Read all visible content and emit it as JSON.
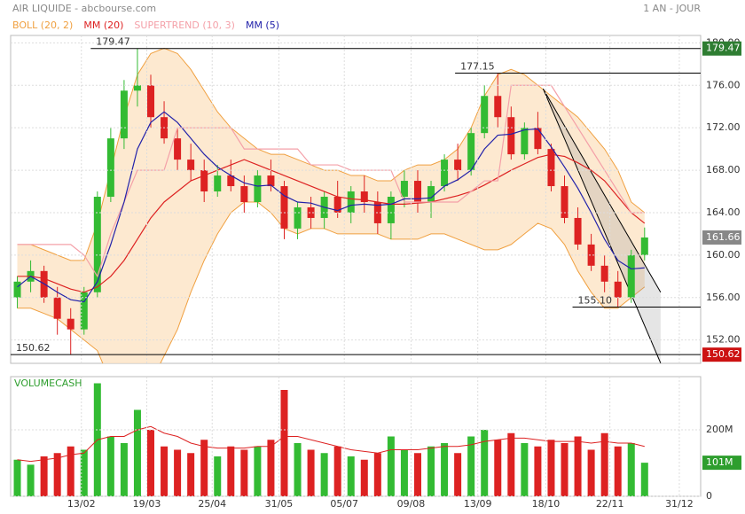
{
  "chart_data": [
    {
      "type": "candlestick",
      "title": "AIR LIQUIDE - abcbourse.com",
      "subtitle": "1 AN - JOUR",
      "up_color": "#33bb33",
      "down_color": "#dd2222",
      "open": [
        156,
        157.5,
        158.5,
        156,
        154,
        153,
        156.5,
        165.5,
        171,
        175.5,
        176,
        173,
        171,
        169,
        168,
        166,
        167.5,
        166.5,
        165,
        167.5,
        166.5,
        162.5,
        164.5,
        163.5,
        165.5,
        164,
        166,
        165,
        163,
        165.5,
        167,
        165,
        166.5,
        169,
        168,
        171.5,
        175,
        173,
        169.5,
        172,
        170,
        166.5,
        163.5,
        161,
        159,
        157.5,
        156,
        160
      ],
      "high": [
        158,
        159.5,
        159,
        157,
        155,
        157,
        166,
        172,
        176.5,
        179.47,
        177,
        174.5,
        172,
        170.5,
        169,
        168.5,
        169,
        167.5,
        168,
        169,
        167,
        165,
        165.5,
        166,
        167,
        166.5,
        167.5,
        166,
        166,
        168,
        168,
        167,
        169.5,
        170.5,
        172,
        176,
        177.15,
        174,
        172.5,
        173.5,
        170.5,
        167.5,
        164.5,
        162,
        160,
        158.5,
        160.5,
        162.6
      ],
      "low": [
        155,
        156.5,
        155.5,
        152.5,
        150.62,
        152.5,
        156,
        165,
        170,
        174,
        172,
        170.5,
        168,
        167,
        165,
        165.5,
        166,
        164,
        164.5,
        166,
        161.5,
        161.5,
        162.5,
        162.5,
        163.5,
        163,
        164,
        162,
        161.5,
        164.5,
        164,
        163.5,
        166,
        167,
        167.5,
        171,
        172,
        169,
        169,
        169.5,
        166,
        163,
        160.5,
        158.5,
        156.5,
        155.1,
        155.5,
        159.5
      ],
      "close": [
        157.5,
        158.5,
        156,
        154,
        153,
        156.5,
        165.5,
        171,
        175.5,
        176,
        173,
        171,
        169,
        168,
        166,
        167.5,
        166.5,
        165,
        167.5,
        166.5,
        162.5,
        164.5,
        163.5,
        165.5,
        164,
        166,
        165,
        163,
        165.5,
        167,
        165,
        166.5,
        169,
        168,
        171.5,
        175,
        173,
        169.5,
        172,
        170,
        166.5,
        163.5,
        161,
        159,
        157.5,
        156,
        160,
        161.66
      ],
      "bands": {
        "name": "BOLL (20, 2)",
        "color": "#f0a040",
        "fill": "#fde3c4",
        "upper": [
          161,
          161,
          160.5,
          160,
          159.5,
          159.5,
          163,
          168,
          173,
          177,
          179,
          179.5,
          179,
          177.5,
          175.5,
          173.5,
          172,
          171,
          170,
          169.5,
          169.5,
          169,
          168.5,
          168,
          168,
          167.5,
          167.5,
          167,
          167,
          168,
          168.5,
          168.5,
          169,
          170,
          172,
          175,
          177,
          177.5,
          177,
          176,
          175,
          174,
          173,
          171.5,
          170,
          168,
          165,
          164
        ],
        "lower": [
          155,
          155,
          154.5,
          154,
          153,
          152,
          151,
          148,
          146,
          146,
          148,
          150.5,
          153,
          156.5,
          159.5,
          162,
          164,
          165,
          165,
          164,
          162.5,
          162,
          162.5,
          162.5,
          162,
          162,
          162,
          162,
          161.5,
          161.5,
          161.5,
          162,
          162,
          161.5,
          161,
          160.5,
          160.5,
          161,
          162,
          163,
          162.5,
          161,
          158.5,
          156.5,
          155,
          155,
          156,
          157
        ]
      },
      "series": [
        {
          "name": "MM (20)",
          "color": "#dd2222",
          "values": [
            158,
            158,
            157.8,
            157.3,
            156.8,
            156.5,
            157,
            158,
            159.5,
            161.5,
            163.5,
            165,
            166,
            167,
            167.5,
            168,
            168.5,
            169,
            168.5,
            168,
            167.5,
            167,
            166.5,
            166,
            165.5,
            165.3,
            165.2,
            165,
            164.8,
            164.8,
            164.9,
            165,
            165.3,
            165.6,
            166,
            166.6,
            167.3,
            168,
            168.6,
            169.2,
            169.5,
            169.3,
            168.7,
            168,
            167,
            165.5,
            164,
            163
          ]
        },
        {
          "name": "SUPERTREND (10, 3)",
          "color": "#f4a0a8",
          "values": [
            161,
            161,
            161,
            161,
            161,
            160,
            158,
            162,
            165,
            168,
            168,
            168,
            172,
            172,
            172,
            172,
            172,
            170,
            170,
            170,
            170,
            170,
            168.5,
            168.5,
            168.5,
            168,
            168,
            168,
            168,
            165,
            165,
            165,
            165,
            165,
            166,
            167,
            167,
            176,
            176,
            176,
            176,
            174,
            172,
            170,
            168,
            166,
            164,
            164
          ]
        },
        {
          "name": "MM (5)",
          "color": "#2222aa",
          "values": [
            157,
            158,
            157.3,
            156.5,
            155.8,
            155.6,
            157.5,
            161,
            165,
            170,
            172.5,
            173.5,
            172.5,
            171,
            169.5,
            168.3,
            167.5,
            166.8,
            166.5,
            166.6,
            165.6,
            165,
            164.9,
            164.5,
            164.2,
            164.7,
            164.8,
            164.7,
            164.8,
            165.3,
            165.3,
            165.4,
            166.5,
            167.1,
            168,
            170,
            171.3,
            171.4,
            171.8,
            171.9,
            170.2,
            168.3,
            166.3,
            164,
            161.5,
            159.5,
            158.7,
            158.8
          ]
        }
      ],
      "levels": [
        {
          "value": 179.47,
          "x": 5.5,
          "color": "#2e7d32"
        },
        {
          "value": 177.15,
          "x": 32.8
        },
        {
          "value": 155.1,
          "label": "155.10",
          "x": 41.6
        },
        {
          "value": 150.62,
          "x": -0.5,
          "color": "#cc1111"
        }
      ],
      "last_color": "#888888",
      "trendlines": [
        {
          "x": [
            39.4,
            48.2
          ],
          "y": [
            175.67,
            156.5
          ]
        },
        {
          "x": [
            39.4,
            48.2
          ],
          "y": [
            175.67,
            149.83
          ]
        }
      ],
      "xlim": [
        -0.5,
        51.2
      ],
      "ylim": [
        149.8,
        180.7
      ],
      "yticks": [
        {
          "value": 152,
          "label": "152.00"
        },
        {
          "value": 156,
          "label": "156.00"
        },
        {
          "value": 160,
          "label": "160.00"
        },
        {
          "value": 164,
          "label": "164.00"
        },
        {
          "value": 168,
          "label": "168.00"
        },
        {
          "value": 172,
          "label": "172.00"
        },
        {
          "value": 176,
          "label": "176.00"
        },
        {
          "value": 180,
          "label": "180.00"
        }
      ],
      "grid": true
    },
    {
      "type": "bar",
      "title": "VOLUMECASH",
      "values": [
        110,
        95,
        120,
        130,
        150,
        140,
        340,
        180,
        160,
        260,
        200,
        150,
        140,
        130,
        170,
        120,
        150,
        140,
        150,
        170,
        320,
        160,
        140,
        130,
        150,
        120,
        110,
        130,
        180,
        140,
        130,
        150,
        160,
        130,
        180,
        200,
        170,
        190,
        160,
        150,
        170,
        160,
        180,
        140,
        190,
        150,
        160,
        101
      ],
      "value_labels": [
        null,
        null,
        null,
        null,
        null,
        null,
        null,
        null,
        null,
        null,
        null,
        null,
        null,
        null,
        null,
        null,
        null,
        null,
        null,
        null,
        null,
        null,
        null,
        null,
        null,
        null,
        null,
        null,
        null,
        null,
        null,
        null,
        null,
        null,
        null,
        null,
        null,
        null,
        null,
        null,
        null,
        null,
        null,
        null,
        null,
        null,
        null,
        "101M"
      ],
      "label_color": "#2e9e2e",
      "average": {
        "color": "#dd2222",
        "values": [
          110,
          105,
          110,
          115,
          125,
          130,
          170,
          180,
          180,
          200,
          210,
          190,
          180,
          160,
          150,
          145,
          145,
          145,
          150,
          150,
          180,
          180,
          170,
          160,
          150,
          140,
          135,
          130,
          140,
          140,
          140,
          145,
          150,
          150,
          155,
          165,
          170,
          175,
          175,
          170,
          165,
          165,
          165,
          160,
          165,
          160,
          160,
          150
        ]
      },
      "xlim": [
        -0.5,
        51.2
      ],
      "ylim": [
        0,
        360
      ],
      "yticks": [
        0,
        {
          "value": 200,
          "label": "200M"
        }
      ],
      "xticks": [
        {
          "value": 4.8,
          "label": "13/02"
        },
        {
          "value": 9.7,
          "label": "19/03"
        },
        {
          "value": 14.6,
          "label": "25/04"
        },
        {
          "value": 19.6,
          "label": "31/05"
        },
        {
          "value": 24.5,
          "label": "05/07"
        },
        {
          "value": 29.5,
          "label": "09/08"
        },
        {
          "value": 34.5,
          "label": "13/09"
        },
        {
          "value": 39.6,
          "label": "18/10"
        },
        {
          "value": 44.4,
          "label": "22/11"
        },
        {
          "value": 49.6,
          "label": "31/12"
        }
      ],
      "grid": true
    }
  ]
}
